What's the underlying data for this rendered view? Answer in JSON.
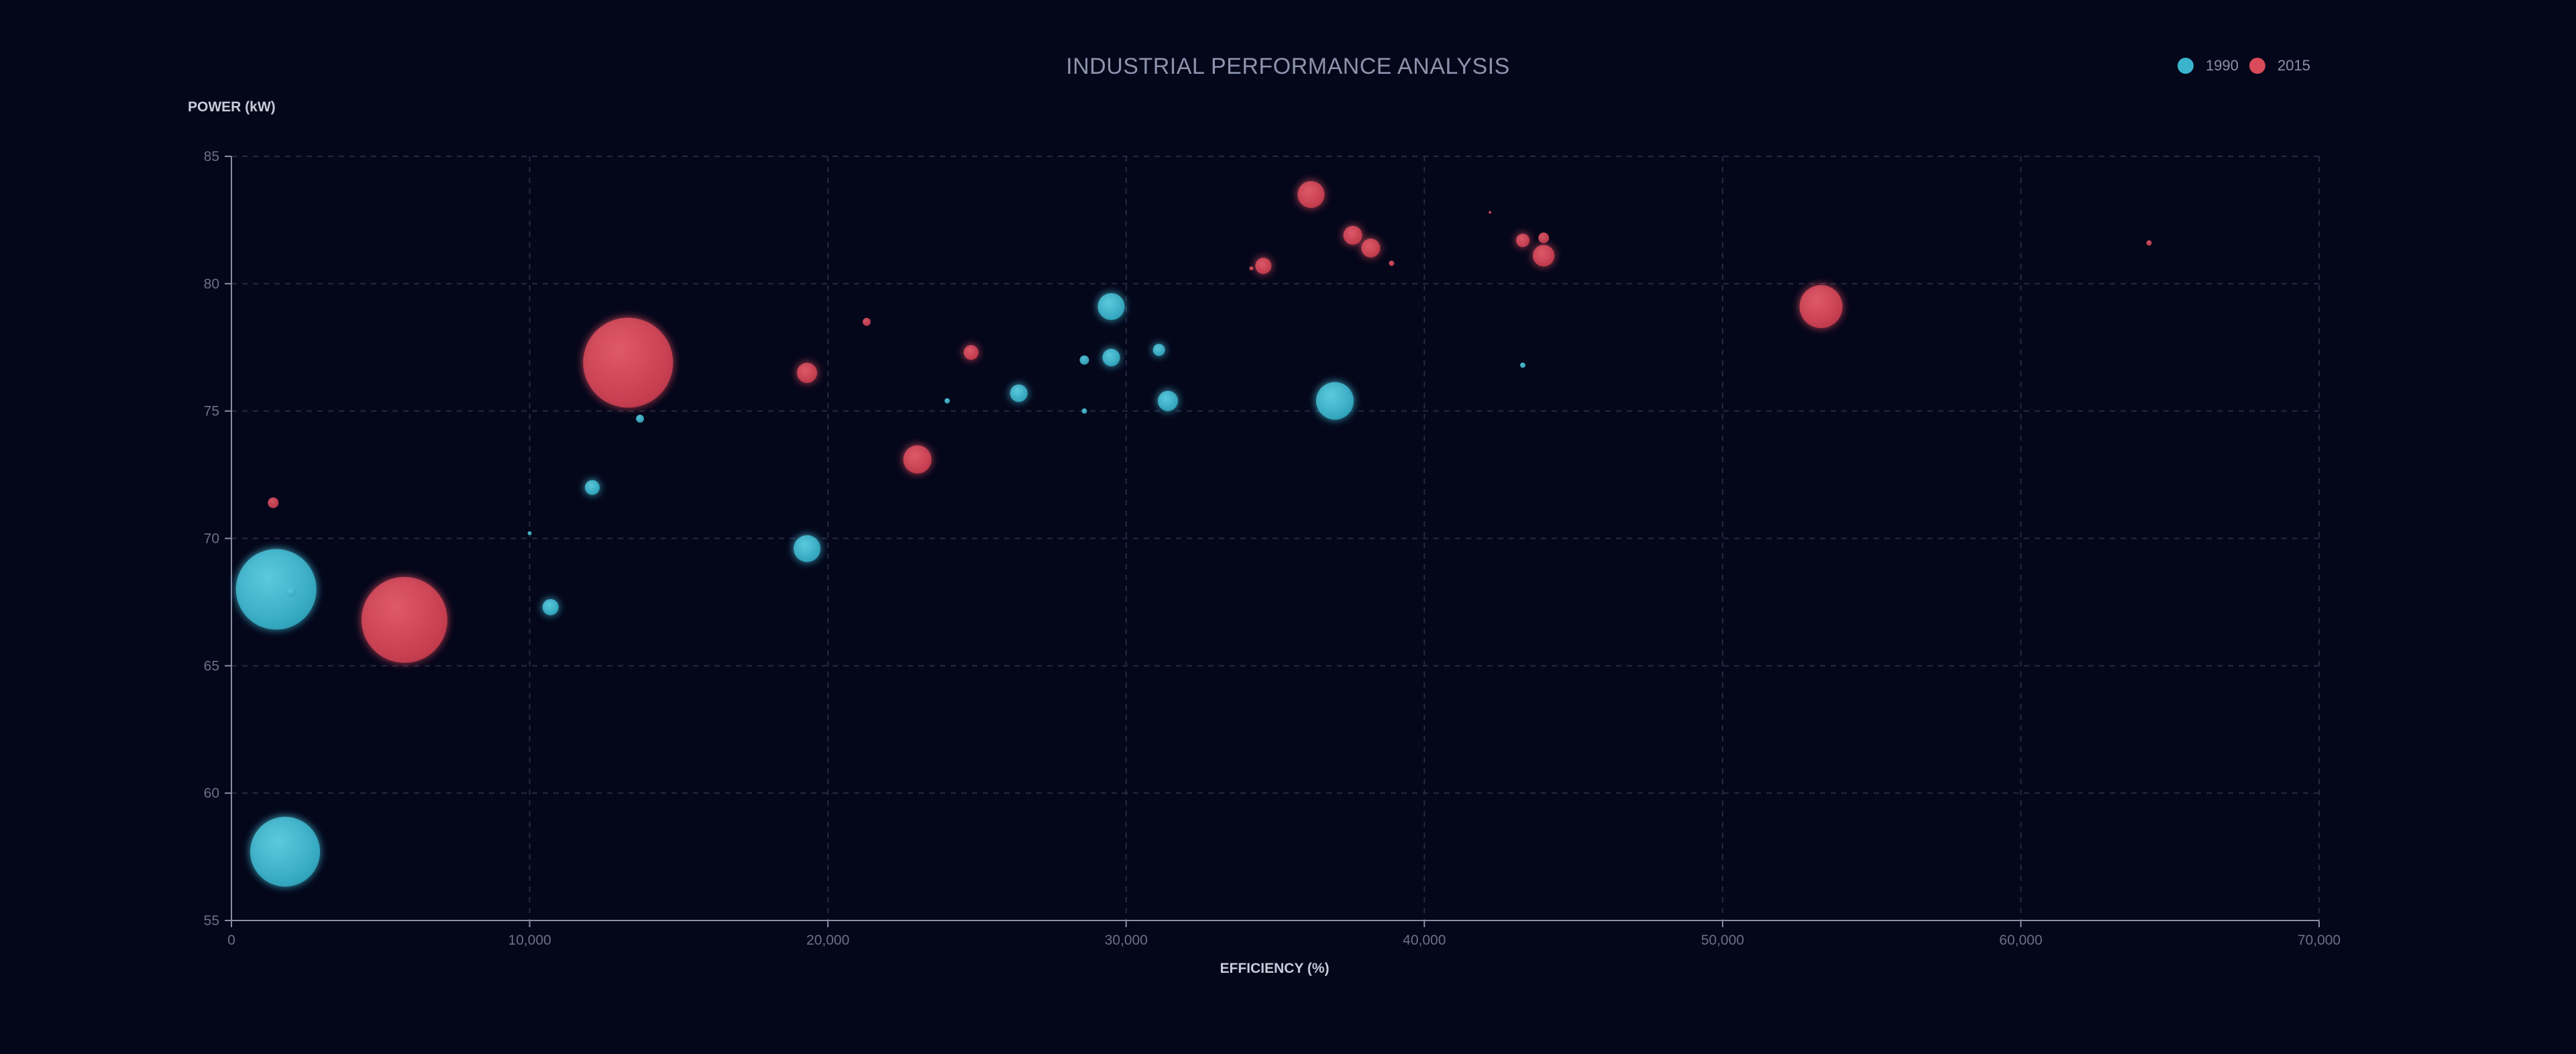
{
  "chart_data": {
    "type": "scatter",
    "title": "INDUSTRIAL PERFORMANCE ANALYSIS",
    "xlabel": "EFFICIENCY (%)",
    "ylabel": "POWER (kW)",
    "xlim": [
      0,
      70000
    ],
    "ylim": [
      55,
      85
    ],
    "x_ticks": [
      0,
      10000,
      20000,
      30000,
      40000,
      50000,
      60000,
      70000
    ],
    "x_tick_labels": [
      "0",
      "10,000",
      "20,000",
      "30,000",
      "40,000",
      "50,000",
      "60,000",
      "70,000"
    ],
    "y_ticks": [
      55,
      60,
      65,
      70,
      75,
      80,
      85
    ],
    "y_tick_labels": [
      "55",
      "60",
      "65",
      "70",
      "75",
      "80",
      "85"
    ],
    "grid": true,
    "legend_position": "top-right",
    "series": [
      {
        "name": "1990",
        "color": "#3ab4cc",
        "points": [
          {
            "x": 1500,
            "y": 68.0,
            "size": 60
          },
          {
            "x": 1800,
            "y": 57.7,
            "size": 52
          },
          {
            "x": 2000,
            "y": 67.9,
            "size": 7
          },
          {
            "x": 10000,
            "y": 70.2,
            "size": 3
          },
          {
            "x": 10700,
            "y": 67.3,
            "size": 12
          },
          {
            "x": 12100,
            "y": 72.0,
            "size": 11
          },
          {
            "x": 13700,
            "y": 74.7,
            "size": 6
          },
          {
            "x": 19300,
            "y": 69.6,
            "size": 20
          },
          {
            "x": 24000,
            "y": 75.4,
            "size": 4
          },
          {
            "x": 26400,
            "y": 75.7,
            "size": 13
          },
          {
            "x": 28600,
            "y": 77.0,
            "size": 7
          },
          {
            "x": 28600,
            "y": 75.0,
            "size": 4
          },
          {
            "x": 29500,
            "y": 79.1,
            "size": 20
          },
          {
            "x": 29500,
            "y": 77.1,
            "size": 13
          },
          {
            "x": 31100,
            "y": 77.4,
            "size": 9
          },
          {
            "x": 31400,
            "y": 75.4,
            "size": 15
          },
          {
            "x": 37000,
            "y": 75.4,
            "size": 28
          },
          {
            "x": 43300,
            "y": 76.8,
            "size": 4
          }
        ]
      },
      {
        "name": "2015",
        "color": "#d94a5a",
        "points": [
          {
            "x": 1400,
            "y": 71.4,
            "size": 8
          },
          {
            "x": 5800,
            "y": 66.8,
            "size": 64
          },
          {
            "x": 13300,
            "y": 76.9,
            "size": 67
          },
          {
            "x": 19300,
            "y": 76.5,
            "size": 15
          },
          {
            "x": 21300,
            "y": 78.5,
            "size": 6
          },
          {
            "x": 23000,
            "y": 73.1,
            "size": 21
          },
          {
            "x": 24800,
            "y": 77.3,
            "size": 11
          },
          {
            "x": 34200,
            "y": 80.6,
            "size": 3
          },
          {
            "x": 34600,
            "y": 80.7,
            "size": 12
          },
          {
            "x": 36200,
            "y": 83.5,
            "size": 20
          },
          {
            "x": 37600,
            "y": 81.9,
            "size": 14
          },
          {
            "x": 38200,
            "y": 81.4,
            "size": 14
          },
          {
            "x": 38900,
            "y": 80.8,
            "size": 4
          },
          {
            "x": 42200,
            "y": 82.8,
            "size": 2
          },
          {
            "x": 43300,
            "y": 81.7,
            "size": 10
          },
          {
            "x": 44000,
            "y": 81.8,
            "size": 8
          },
          {
            "x": 44000,
            "y": 81.1,
            "size": 16
          },
          {
            "x": 53300,
            "y": 79.1,
            "size": 32
          },
          {
            "x": 64300,
            "y": 81.6,
            "size": 4
          }
        ]
      }
    ]
  }
}
